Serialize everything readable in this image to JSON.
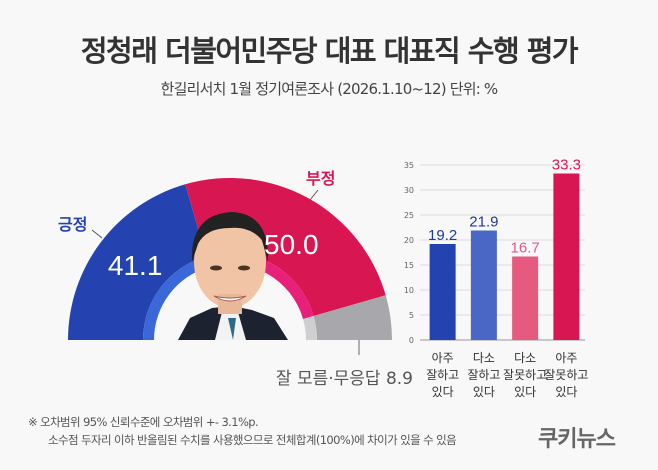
{
  "title": "정청래 더불어민주당 대표 대표직 수행 평가",
  "subtitle": "한길리서치 1월 정기여론조사 (2026.1.10~12) 단위: %",
  "chart_data": [
    {
      "type": "pie",
      "shape": "half-donut",
      "slices": [
        {
          "label": "긍정",
          "value": 41.1,
          "color": "#2443b0"
        },
        {
          "label": "부정",
          "value": 50.0,
          "color": "#d81752"
        },
        {
          "label": "잘 모름·무응답",
          "value": 8.9,
          "color": "#a8a8ac"
        }
      ],
      "labels": {
        "positive": "긍정",
        "negative": "부정",
        "unknown": "잘 모름·무응답 8.9"
      }
    },
    {
      "type": "bar",
      "categories": [
        "아주\n잘하고\n있다",
        "다소\n잘하고\n있다",
        "다소\n잘못하고\n있다",
        "아주\n잘못하고\n있다"
      ],
      "values": [
        19.2,
        21.9,
        16.7,
        33.3
      ],
      "value_labels": [
        "19.2",
        "21.9",
        "16.7",
        "33.3"
      ],
      "colors": [
        "#2443b0",
        "#4a67c6",
        "#e65a80",
        "#d81752"
      ],
      "ylim": [
        0,
        35
      ],
      "yticks": [
        "0",
        "5",
        "10",
        "15",
        "20",
        "25",
        "30",
        "35"
      ],
      "grid": true
    }
  ],
  "notes": [
    "※ 오차범위 95% 신뢰수준에 오차범위 +- 3.1%p.",
    "소수점 두자리 이하 반올림된 수치를 사용했으므로 전체합계(100%)에 차이가 있을 수 있음"
  ],
  "logo": "쿠키뉴스"
}
